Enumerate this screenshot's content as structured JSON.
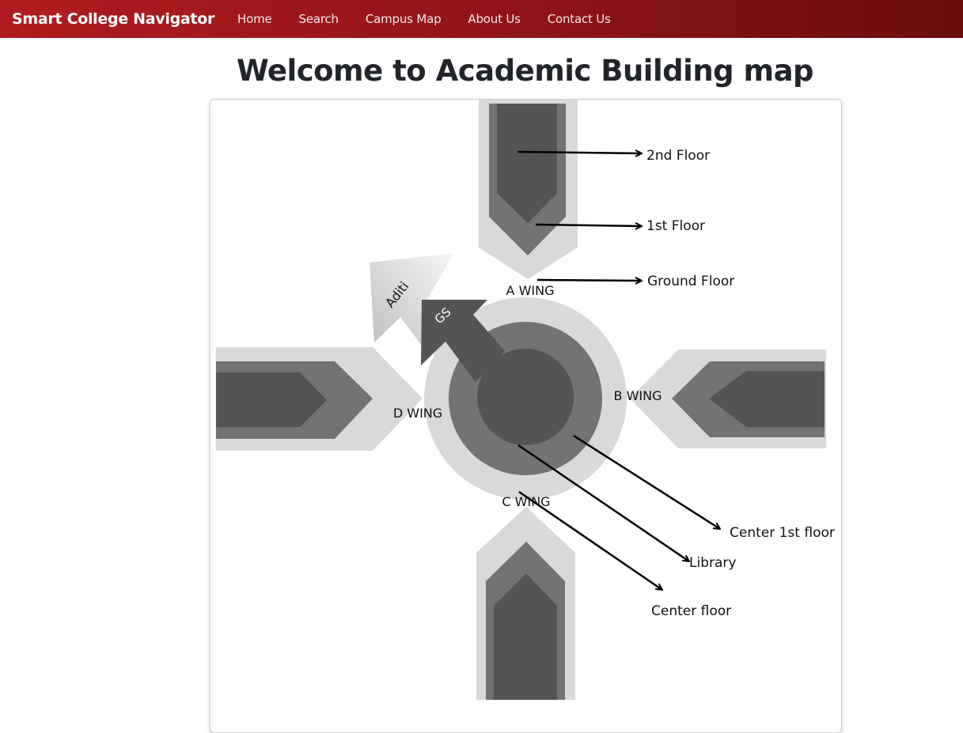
{
  "navbar": {
    "brand": "Smart College Navigator",
    "links": [
      "Home",
      "Search",
      "Campus Map",
      "About Us",
      "Contact Us"
    ]
  },
  "page": {
    "title": "Welcome to Academic Building map"
  },
  "map": {
    "floor_labels": [
      "2nd Floor",
      "1st Floor",
      "Ground Floor"
    ],
    "wings": [
      "A WING",
      "B WING",
      "C WING",
      "D WING"
    ],
    "center_labels": [
      "Center 1st floor",
      "Library",
      "Center floor"
    ],
    "markers": [
      "Aditi",
      "GS"
    ]
  },
  "colors": {
    "nav_start": "#b01c1f",
    "nav_end": "#6a0d0f",
    "floor_ground": "#d9d9d9",
    "floor_first": "#737373",
    "floor_second": "#545454"
  }
}
